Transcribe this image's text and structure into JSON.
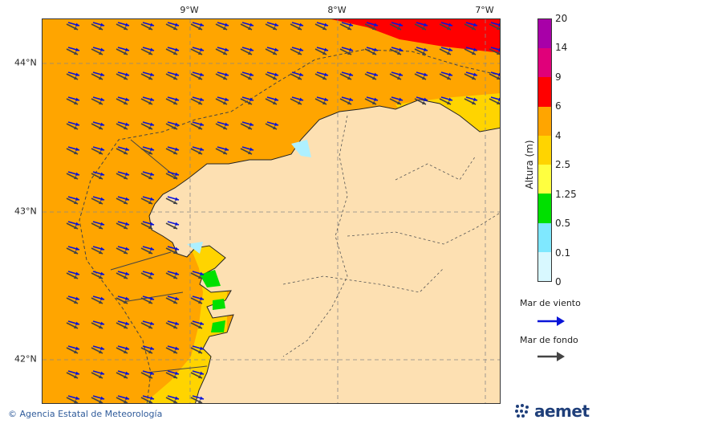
{
  "map": {
    "lon_labels": [
      "9°W",
      "8°W",
      "7°W"
    ],
    "lat_labels": [
      "44°N",
      "43°N",
      "42°N"
    ]
  },
  "colorbar": {
    "title": "Altura (m)",
    "ticks": [
      "20",
      "14",
      "9",
      "6",
      "4",
      "2.5",
      "1.25",
      "0.5",
      "0.1",
      "0"
    ],
    "colors": [
      "#a800a8",
      "#e0007a",
      "#ff0000",
      "#ffa500",
      "#ffd400",
      "#ffff40",
      "#00e000",
      "#7fe8ff",
      "#d8f8ff"
    ]
  },
  "legend": {
    "wind_sea_label": "Mar de viento",
    "wind_sea_color": "#0a14d8",
    "swell_label": "Mar de fondo",
    "swell_color": "#444444"
  },
  "footer": {
    "credit": "© Agencia Estatal de Meteorología",
    "logo_text": "aemet"
  }
}
